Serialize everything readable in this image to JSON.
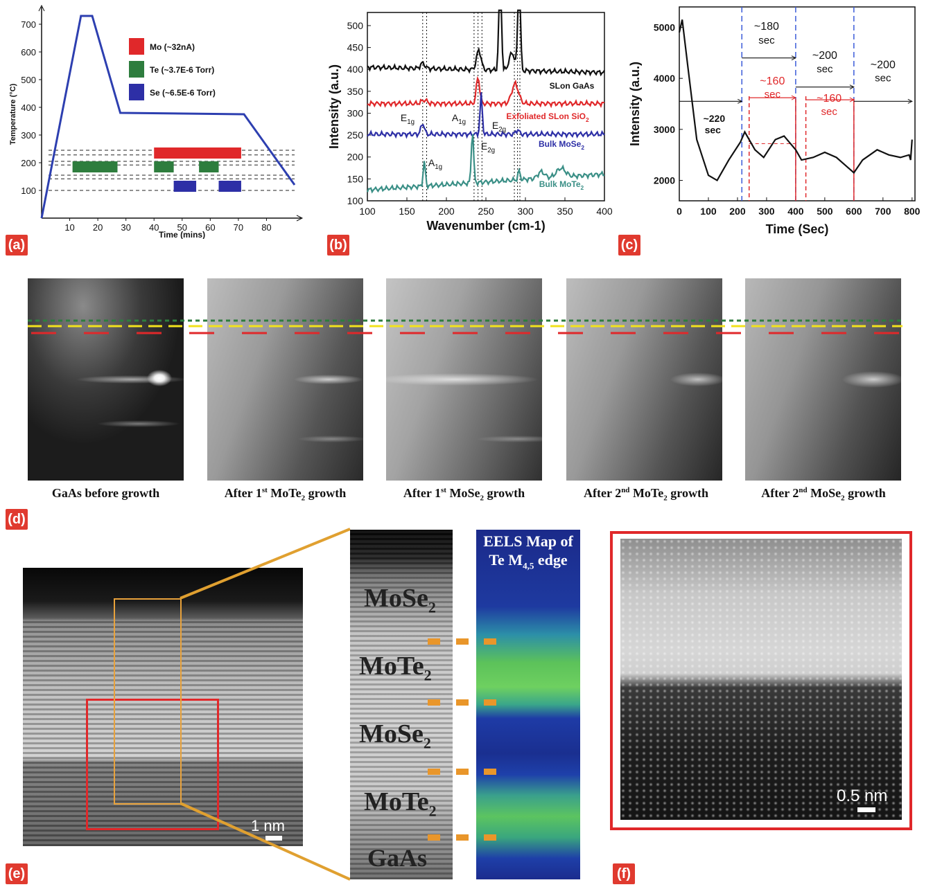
{
  "panels": {
    "a": "(a)",
    "b": "(b)",
    "c": "(c)",
    "d": "(d)",
    "e": "(e)",
    "f": "(f)"
  },
  "colors": {
    "red": "#e0282a",
    "green": "#2e7d3e",
    "blue": "#2d2fa6",
    "teal": "#3a8f86",
    "tag": "#e03a2f",
    "orange": "#e9a23b"
  },
  "chart_data": [
    {
      "id": "a",
      "type": "line",
      "xlabel": "Time (mins)",
      "ylabel": "Temperature (°C)",
      "xticks": [
        10,
        20,
        30,
        40,
        50,
        60,
        70,
        80
      ],
      "yticks": [
        100,
        200,
        300,
        400,
        500,
        600,
        700
      ],
      "xlim": [
        0,
        90
      ],
      "ylim": [
        0,
        750
      ],
      "series": [
        {
          "values": [
            [
              0,
              0
            ],
            [
              14,
              730
            ],
            [
              18,
              730
            ],
            [
              28,
              380
            ],
            [
              72,
              375
            ],
            [
              90,
              120
            ]
          ]
        }
      ],
      "legend": [
        {
          "label": "Mo (~32nA)",
          "color": "#e0282a"
        },
        {
          "label": "Te (~3.7E-6 Torr)",
          "color": "#2e7d3e"
        },
        {
          "label": "Se (~6.5E-6 Torr)",
          "color": "#2d2fa6"
        }
      ],
      "shutter_bars": [
        {
          "source": "Mo",
          "start": 40,
          "end": 71,
          "level": 235
        },
        {
          "source": "Te",
          "start": 11,
          "end": 27,
          "level": 185
        },
        {
          "source": "Te",
          "start": 40,
          "end": 47,
          "level": 185
        },
        {
          "source": "Te",
          "start": 56,
          "end": 63,
          "level": 185
        },
        {
          "source": "Se",
          "start": 47,
          "end": 55,
          "level": 115
        },
        {
          "source": "Se",
          "start": 63,
          "end": 71,
          "level": 115
        }
      ]
    },
    {
      "id": "b",
      "type": "line",
      "xlabel": "Wavenumber (cm-1)",
      "ylabel": "Intensity (a.u.)",
      "xticks": [
        100,
        150,
        200,
        250,
        300,
        350,
        400
      ],
      "yticks": [
        100,
        150,
        200,
        250,
        300,
        350,
        400,
        450,
        500
      ],
      "xlim": [
        100,
        400
      ],
      "ylim": [
        100,
        530
      ],
      "series": [
        {
          "name": "SLon GaAs",
          "color": "#111111",
          "baseline": 405
        },
        {
          "name": "Exfoliated SLon SiO2",
          "color": "#e0282a",
          "baseline": 322
        },
        {
          "name": "Bulk MoSe2",
          "color": "#2d2fa6",
          "baseline": 252
        },
        {
          "name": "Bulk MoTe2",
          "color": "#3a8f86",
          "baseline": 125
        }
      ],
      "peak_labels": [
        "E1g",
        "A1g",
        "E2g",
        "A1g",
        "E2g"
      ],
      "reference_lines": [
        170,
        175,
        235,
        240,
        245,
        286,
        290,
        293
      ]
    },
    {
      "id": "c",
      "type": "line",
      "xlabel": "Time (Sec)",
      "ylabel": "Intensity (a.u.)",
      "xticks": [
        0,
        100,
        200,
        300,
        400,
        500,
        600,
        700,
        800
      ],
      "yticks": [
        2000,
        3000,
        4000,
        5000
      ],
      "xlim": [
        0,
        810
      ],
      "ylim": [
        1600,
        5400
      ],
      "series": [
        {
          "color": "#111111",
          "values": [
            [
              0,
              4900
            ],
            [
              10,
              5150
            ],
            [
              30,
              4200
            ],
            [
              60,
              2800
            ],
            [
              100,
              2100
            ],
            [
              130,
              2000
            ],
            [
              170,
              2400
            ],
            [
              210,
              2750
            ],
            [
              225,
              2950
            ],
            [
              260,
              2600
            ],
            [
              290,
              2450
            ],
            [
              330,
              2800
            ],
            [
              360,
              2870
            ],
            [
              400,
              2600
            ],
            [
              420,
              2400
            ],
            [
              460,
              2450
            ],
            [
              500,
              2550
            ],
            [
              540,
              2450
            ],
            [
              570,
              2300
            ],
            [
              600,
              2150
            ],
            [
              630,
              2400
            ],
            [
              680,
              2600
            ],
            [
              720,
              2500
            ],
            [
              760,
              2450
            ],
            [
              790,
              2500
            ],
            [
              795,
              2400
            ],
            [
              800,
              2800
            ]
          ]
        }
      ],
      "annotations": [
        "~220",
        "sec",
        "~180",
        "sec",
        "~200",
        "sec",
        "~200",
        "sec",
        "~160",
        "sec",
        "~160",
        "sec"
      ],
      "blue_lines": [
        215,
        400,
        600
      ],
      "red_lines": [
        240,
        400,
        435,
        600
      ]
    }
  ],
  "rheed": {
    "captions": [
      {
        "pre": "GaAs before growth",
        "sup": "",
        "mid": "",
        "sub": "",
        "post": ""
      },
      {
        "pre": "After 1",
        "sup": "st",
        "mid": " MoTe",
        "sub": "2",
        "post": " growth"
      },
      {
        "pre": "After 1",
        "sup": "st",
        "mid": " MoSe",
        "sub": "2",
        "post": " growth"
      },
      {
        "pre": "After 2",
        "sup": "nd",
        "mid": " MoTe",
        "sub": "2",
        "post": " growth"
      },
      {
        "pre": "After 2",
        "sup": "nd",
        "mid": " MoSe",
        "sub": "2",
        "post": " growth"
      }
    ]
  },
  "stem": {
    "scale_e": "1 nm",
    "scale_f": "0.5 nm",
    "eels_line1": "EELS Map of",
    "eels_line2_pre": "Te M",
    "eels_line2_sub": "4,5",
    "eels_line2_post": " edge",
    "layers": [
      {
        "base": "MoSe",
        "sub": "2"
      },
      {
        "base": "MoTe",
        "sub": "2"
      },
      {
        "base": "MoSe",
        "sub": "2"
      },
      {
        "base": "MoTe",
        "sub": "2"
      },
      {
        "base": "GaAs",
        "sub": ""
      }
    ]
  }
}
